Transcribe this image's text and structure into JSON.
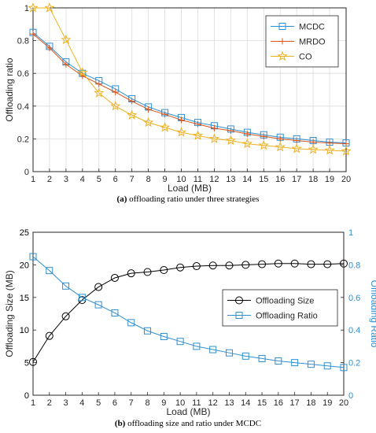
{
  "chart_data": [
    {
      "type": "line",
      "caption_label": "(a)",
      "caption_text": "offloading ratio under three strategies",
      "xlabel": "Load (MB)",
      "ylabel": "Offloading ratio",
      "x": [
        1,
        2,
        3,
        4,
        5,
        6,
        7,
        8,
        9,
        10,
        11,
        12,
        13,
        14,
        15,
        16,
        17,
        18,
        19,
        20
      ],
      "xlim": [
        1,
        20
      ],
      "ylim": [
        0,
        1
      ],
      "yticks": [
        0,
        0.2,
        0.4,
        0.6,
        0.8,
        1
      ],
      "ytick_labels": [
        "0",
        "0.2",
        "0.4",
        "0.6",
        "0.8",
        "1"
      ],
      "grid": true,
      "legend": "top-right",
      "series": [
        {
          "name": "MCDC",
          "marker": "square",
          "color": "#2f8fd0",
          "values": [
            0.85,
            0.765,
            0.67,
            0.6,
            0.555,
            0.505,
            0.445,
            0.395,
            0.36,
            0.33,
            0.3,
            0.28,
            0.26,
            0.24,
            0.225,
            0.21,
            0.2,
            0.19,
            0.18,
            0.175
          ]
        },
        {
          "name": "MRDO",
          "marker": "plus",
          "color": "#d95319",
          "values": [
            0.84,
            0.755,
            0.655,
            0.585,
            0.535,
            0.485,
            0.43,
            0.38,
            0.35,
            0.315,
            0.29,
            0.265,
            0.25,
            0.23,
            0.215,
            0.2,
            0.19,
            0.18,
            0.175,
            0.17
          ]
        },
        {
          "name": "CO",
          "marker": "star",
          "color": "#edb120",
          "values": [
            1.0,
            1.0,
            0.805,
            0.605,
            0.48,
            0.4,
            0.345,
            0.3,
            0.27,
            0.24,
            0.22,
            0.2,
            0.19,
            0.17,
            0.16,
            0.15,
            0.14,
            0.135,
            0.13,
            0.125
          ]
        }
      ]
    },
    {
      "type": "line",
      "caption_label": "(b)",
      "caption_text": "offloading size and ratio under MCDC",
      "xlabel": "Load (MB)",
      "ylabel": "Offloading Size (MB)",
      "ylabel_right": "Offloading Ratio",
      "x": [
        1,
        2,
        3,
        4,
        5,
        6,
        7,
        8,
        9,
        10,
        11,
        12,
        13,
        14,
        15,
        16,
        17,
        18,
        19,
        20
      ],
      "xlim": [
        1,
        20
      ],
      "ylim": [
        0,
        25
      ],
      "ylim_right": [
        0,
        1
      ],
      "yticks": [
        0,
        5,
        10,
        15,
        20,
        25
      ],
      "yticks_right": [
        0,
        0.2,
        0.4,
        0.6,
        0.8,
        1
      ],
      "ytick_labels_right": [
        "0",
        "0.2",
        "0.4",
        "0.6",
        "0.8",
        "1"
      ],
      "grid": false,
      "legend": "center-right",
      "series": [
        {
          "name": "Offloading Size",
          "marker": "circle",
          "color": "#000000",
          "axis": "left",
          "values": [
            5.1,
            9.1,
            12.1,
            14.6,
            16.6,
            18.0,
            18.7,
            18.9,
            19.2,
            19.6,
            19.8,
            19.9,
            19.9,
            20.0,
            20.1,
            20.2,
            20.2,
            20.1,
            20.1,
            20.2
          ]
        },
        {
          "name": "Offloading Ratio",
          "marker": "square",
          "color": "#2f8fd0",
          "axis": "right",
          "values": [
            0.85,
            0.765,
            0.67,
            0.6,
            0.555,
            0.505,
            0.445,
            0.395,
            0.36,
            0.33,
            0.3,
            0.28,
            0.26,
            0.24,
            0.225,
            0.21,
            0.2,
            0.19,
            0.18,
            0.17
          ]
        }
      ]
    }
  ]
}
